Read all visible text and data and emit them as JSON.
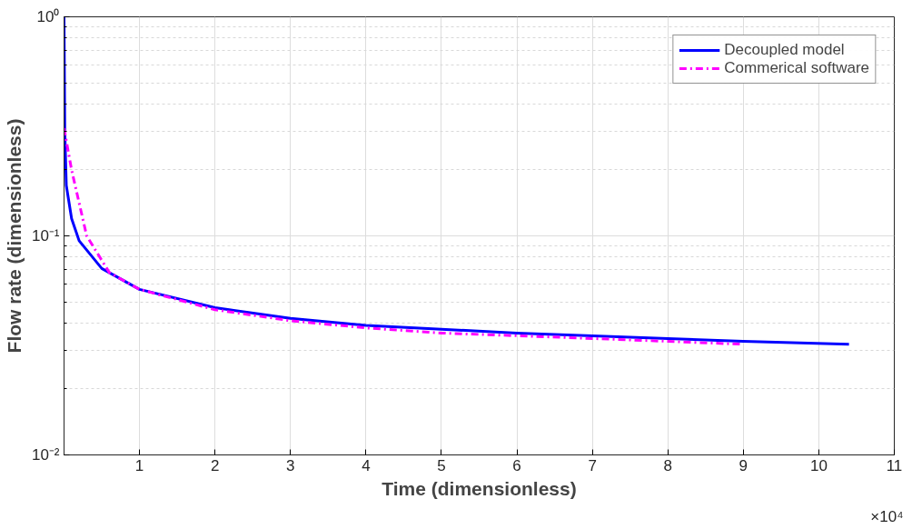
{
  "chart_data": {
    "type": "line",
    "xlabel": "Time (dimensionless)",
    "ylabel": "Flow rate (dimensionless)",
    "log": "y",
    "grid": true,
    "legend": "top right",
    "xlim": [
      0,
      11
    ],
    "xticks": [
      {
        "value": 0,
        "label": null
      },
      1,
      2,
      3,
      4,
      5,
      6,
      7,
      8,
      9,
      10,
      11
    ],
    "ylim": [
      0.01,
      1
    ],
    "yticks": [
      {
        "value": 0.01,
        "label": "10⁻²"
      },
      {
        "value": 0.1,
        "label": "10⁻¹"
      },
      {
        "value": 1,
        "label": "10⁰"
      }
    ],
    "annotations": [
      "×10⁴"
    ],
    "series": [
      {
        "name": "Decoupled model",
        "color": "#0000ff",
        "line_style": "solid",
        "x": [
          0,
          0.01,
          0.03,
          0.1,
          0.2,
          0.5,
          1,
          2,
          3,
          4,
          5,
          6,
          7,
          8,
          9,
          10.4
        ],
        "values": [
          1.0,
          0.3,
          0.17,
          0.12,
          0.095,
          0.071,
          0.057,
          0.047,
          0.042,
          0.039,
          0.0375,
          0.036,
          0.035,
          0.034,
          0.033,
          0.032
        ]
      },
      {
        "name": "Commerical software",
        "color": "#ff00ff",
        "line_style": "dashdot",
        "x": [
          0,
          0.1,
          0.3,
          0.6,
          1,
          2,
          3,
          4,
          5,
          6,
          7,
          8,
          9
        ],
        "values": [
          0.31,
          0.2,
          0.1,
          0.068,
          0.057,
          0.046,
          0.041,
          0.038,
          0.036,
          0.035,
          0.034,
          0.033,
          0.032
        ]
      }
    ]
  }
}
